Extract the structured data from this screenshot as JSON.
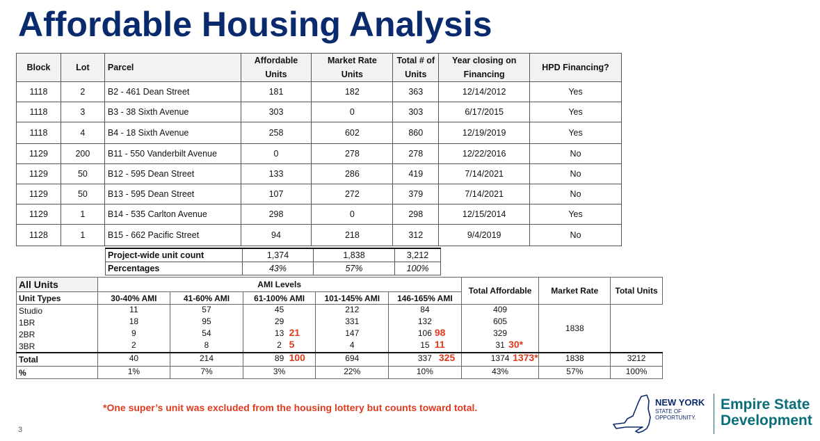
{
  "title": "Affordable Housing Analysis",
  "parcel_table": {
    "headers": {
      "block": "Block",
      "lot": "Lot",
      "parcel": "Parcel",
      "affordable_1": "Affordable",
      "affordable_2": "Units",
      "market_1": "Market Rate",
      "market_2": "Units",
      "total_1": "Total # of",
      "total_2": "Units",
      "year_1": "Year closing on",
      "year_2": "Financing",
      "hpd": "HPD Financing?"
    },
    "rows": [
      {
        "block": "1118",
        "lot": "2",
        "parcel": "B2 - 461 Dean Street",
        "affordable": "181",
        "market": "182",
        "total": "363",
        "year": "12/14/2012",
        "hpd": "Yes"
      },
      {
        "block": "1118",
        "lot": "3",
        "parcel": "B3 - 38 Sixth Avenue",
        "affordable": "303",
        "market": "0",
        "total": "303",
        "year": "6/17/2015",
        "hpd": "Yes"
      },
      {
        "block": "1118",
        "lot": "4",
        "parcel": "B4 - 18 Sixth Avenue",
        "affordable": "258",
        "market": "602",
        "total": "860",
        "year": "12/19/2019",
        "hpd": "Yes"
      },
      {
        "block": "1129",
        "lot": "200",
        "parcel": "B11 - 550 Vanderbilt Avenue",
        "affordable": "0",
        "market": "278",
        "total": "278",
        "year": "12/22/2016",
        "hpd": "No"
      },
      {
        "block": "1129",
        "lot": "50",
        "parcel": "B12 - 595 Dean Street",
        "affordable": "133",
        "market": "286",
        "total": "419",
        "year": "7/14/2021",
        "hpd": "No"
      },
      {
        "block": "1129",
        "lot": "50",
        "parcel": "B13 - 595 Dean Street",
        "affordable": "107",
        "market": "272",
        "total": "379",
        "year": "7/14/2021",
        "hpd": "No"
      },
      {
        "block": "1129",
        "lot": "1",
        "parcel": "B14 - 535 Carlton Avenue",
        "affordable": "298",
        "market": "0",
        "total": "298",
        "year": "12/15/2014",
        "hpd": "Yes"
      },
      {
        "block": "1128",
        "lot": "1",
        "parcel": "B15 - 662 Pacific Street",
        "affordable": "94",
        "market": "218",
        "total": "312",
        "year": "9/4/2019",
        "hpd": "No"
      }
    ]
  },
  "summary": {
    "count_label": "Project-wide unit count",
    "count_affordable": "1,374",
    "count_market": "1,838",
    "count_total": "3,212",
    "pct_label": "Percentages",
    "pct_affordable": "43%",
    "pct_market": "57%",
    "pct_total": "100%"
  },
  "ami_table": {
    "all_units": "All Units",
    "ami_levels": "AMI Levels",
    "total_affordable": "Total Affordable",
    "market_rate": "Market Rate",
    "total_units": "Total Units",
    "unit_types": "Unit Types",
    "ami_headers": [
      "30-40% AMI",
      "41-60% AMI",
      "61-100% AMI",
      "101-145% AMI",
      "146-165% AMI"
    ],
    "rows": [
      {
        "type": "Studio",
        "a1": "11",
        "a2": "57",
        "a3": "45",
        "a3_red": "",
        "a4": "212",
        "a5": "84",
        "a5_red": "",
        "ta": "409",
        "ta_red": ""
      },
      {
        "type": "1BR",
        "a1": "18",
        "a2": "95",
        "a3": "29",
        "a3_red": "",
        "a4": "331",
        "a5": "132",
        "a5_red": "",
        "ta": "605",
        "ta_red": ""
      },
      {
        "type": "2BR",
        "a1": "9",
        "a2": "54",
        "a3": "13",
        "a3_red": "21",
        "a4": "147",
        "a5": "106",
        "a5_red": "98",
        "ta": "329",
        "ta_red": ""
      },
      {
        "type": "3BR",
        "a1": "2",
        "a2": "8",
        "a3": "2",
        "a3_red": "5",
        "a4": "4",
        "a5": "15",
        "a5_red": "11",
        "ta": "31",
        "ta_red": "30*"
      }
    ],
    "market_rate_value": "1838",
    "total": {
      "type": "Total",
      "a1": "40",
      "a2": "214",
      "a3": "89",
      "a3_red": "100",
      "a4": "694",
      "a5": "337",
      "a5_red": "325",
      "ta": "1374",
      "ta_red": "1373*",
      "mr": "1838",
      "tu": "3212"
    },
    "pct": {
      "type": "%",
      "a1": "1%",
      "a2": "7%",
      "a3": "3%",
      "a4": "22%",
      "a5": "10%",
      "ta": "43%",
      "mr": "57%",
      "tu": "100%"
    }
  },
  "footnote": "*One super’s unit was excluded from the housing lottery but counts toward total.",
  "page_number": "3",
  "logo": {
    "nys_line1": "NEW YORK",
    "nys_line2": "STATE OF",
    "nys_line3": "OPPORTUNITY.",
    "esd_line1": "Empire State",
    "esd_line2": "Development",
    "state_color": "#0a6e7a",
    "navy": "#0a2a6e"
  },
  "accent_red": "#e03a1e"
}
